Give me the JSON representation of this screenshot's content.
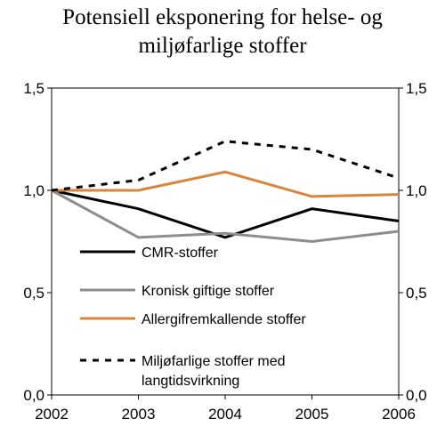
{
  "chart_data": {
    "type": "line",
    "title_line1": "Potensiell eksponering for helse- og",
    "title_line2": "miljøfarlige stoffer",
    "x": [
      "2002",
      "2003",
      "2004",
      "2005",
      "2006"
    ],
    "ylim": [
      0,
      1.5
    ],
    "y_ticks": [
      "0,0",
      "0,5",
      "1,0",
      "1,5"
    ],
    "y_tick_values": [
      0,
      0.5,
      1.0,
      1.5
    ],
    "grid": false,
    "legend_position": "left-bottom inside plot",
    "series": [
      {
        "name": "CMR-stoffer",
        "color": "#000000",
        "dash": "solid",
        "values": [
          1.0,
          0.91,
          0.77,
          0.91,
          0.85
        ]
      },
      {
        "name": "Kronisk giftige stoffer",
        "color": "#8c8c8c",
        "dash": "solid",
        "values": [
          1.0,
          0.77,
          0.79,
          0.75,
          0.8
        ]
      },
      {
        "name": "Allergifremkallende stoffer",
        "color": "#d9843b",
        "dash": "solid",
        "values": [
          1.0,
          1.0,
          1.09,
          0.97,
          0.98
        ]
      },
      {
        "name": "Miljøfarlige stoffer med langtidsvirkning",
        "name_line1": "Miljøfarlige stoffer med",
        "name_line2": "langtidsvirkning",
        "color": "#000000",
        "dash": "dashed",
        "values": [
          1.0,
          1.05,
          1.24,
          1.2,
          1.06
        ]
      }
    ]
  }
}
